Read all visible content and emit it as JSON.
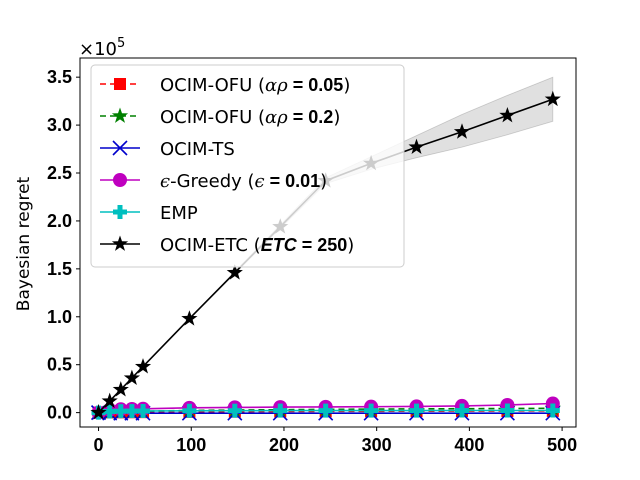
{
  "chart_data": {
    "type": "line",
    "title": "",
    "xlabel": "",
    "ylabel": "Bayesian regret",
    "xlim": [
      -20,
      515
    ],
    "ylim": [
      -0.15,
      3.7
    ],
    "y_scale_label": "×10",
    "y_scale_exponent": "5",
    "xticks": [
      0,
      100,
      200,
      300,
      400,
      500
    ],
    "xtick_labels": [
      "0",
      "100",
      "200",
      "300",
      "400",
      "500"
    ],
    "yticks": [
      0,
      0.5,
      1,
      1.5,
      2,
      2.5,
      3,
      3.5
    ],
    "ytick_labels": [
      "0.0",
      "0.5",
      "1.0",
      "1.5",
      "2.0",
      "2.5",
      "3.0",
      "3.5"
    ],
    "grid": false,
    "legend_position": "top-left",
    "series": [
      {
        "name": "OCIM-OFU (αρ = 0.05)",
        "legend_prefix": "OCIM-OFU (",
        "legend_math": "αρ",
        "legend_bold": " = 0.05",
        "legend_suffix": ")",
        "color": "#ff0000",
        "linestyle": "dashed",
        "marker": "square",
        "x": [
          0,
          12,
          24,
          36,
          48,
          98,
          147,
          196,
          245,
          294,
          343,
          392,
          441,
          490
        ],
        "values": [
          0,
          0.002,
          0.003,
          0.004,
          0.005,
          0.008,
          0.01,
          0.012,
          0.013,
          0.014,
          0.015,
          0.016,
          0.017,
          0.018
        ]
      },
      {
        "name": "OCIM-OFU (αρ = 0.2)",
        "legend_prefix": "OCIM-OFU (",
        "legend_math": "αρ",
        "legend_bold": " = 0.2",
        "legend_suffix": ")",
        "color": "#008000",
        "linestyle": "dashed",
        "marker": "star",
        "x": [
          0,
          12,
          24,
          36,
          48,
          98,
          147,
          196,
          245,
          294,
          343,
          392,
          441,
          490
        ],
        "values": [
          0,
          0.005,
          0.009,
          0.012,
          0.015,
          0.022,
          0.027,
          0.031,
          0.034,
          0.037,
          0.039,
          0.041,
          0.043,
          0.045
        ]
      },
      {
        "name": "OCIM-TS",
        "legend_prefix": "OCIM-TS",
        "legend_math": "",
        "legend_bold": "",
        "legend_suffix": "",
        "color": "#0000cc",
        "linestyle": "solid",
        "marker": "x",
        "x": [
          0,
          12,
          24,
          36,
          48,
          98,
          147,
          196,
          245,
          294,
          343,
          392,
          441,
          490
        ],
        "values": [
          0,
          -0.005,
          -0.006,
          -0.006,
          -0.006,
          -0.006,
          -0.006,
          -0.006,
          -0.006,
          -0.006,
          -0.006,
          -0.006,
          -0.006,
          -0.006
        ]
      },
      {
        "name": "ϵ-Greedy (ϵ = 0.01)",
        "legend_prefix": "",
        "legend_math": "ϵ",
        "legend_mid": "-Greedy (",
        "legend_math2": "ϵ",
        "legend_bold": " = 0.01",
        "legend_suffix": ")",
        "color": "#bf00bf",
        "linestyle": "solid",
        "marker": "circle",
        "x": [
          0,
          12,
          24,
          36,
          48,
          98,
          147,
          196,
          245,
          294,
          343,
          392,
          441,
          490
        ],
        "values": [
          0,
          0.03,
          0.035,
          0.038,
          0.04,
          0.05,
          0.055,
          0.058,
          0.06,
          0.062,
          0.065,
          0.07,
          0.08,
          0.095
        ]
      },
      {
        "name": "EMP",
        "legend_prefix": "EMP",
        "legend_math": "",
        "legend_bold": "",
        "legend_suffix": "",
        "color": "#00bfbf",
        "linestyle": "solid",
        "marker": "plus",
        "x": [
          0,
          12,
          24,
          36,
          48,
          98,
          147,
          196,
          245,
          294,
          343,
          392,
          441,
          490
        ],
        "values": [
          0,
          0.012,
          0.015,
          0.016,
          0.017,
          0.019,
          0.02,
          0.021,
          0.021,
          0.021,
          0.021,
          0.022,
          0.022,
          0.022
        ]
      },
      {
        "name": "OCIM-ETC (ETC = 250)",
        "legend_prefix": "OCIM-ETC (",
        "legend_math": "",
        "legend_bolditalic": "ETC",
        "legend_bold": " = 250",
        "legend_suffix": ")",
        "color": "#000000",
        "linestyle": "solid",
        "marker": "star",
        "x": [
          0,
          12,
          24,
          36,
          48,
          98,
          147,
          196,
          245,
          294,
          343,
          392,
          441,
          490
        ],
        "values": [
          0,
          0.12,
          0.24,
          0.36,
          0.48,
          0.98,
          1.46,
          1.94,
          2.42,
          2.6,
          2.77,
          2.93,
          3.1,
          3.27
        ],
        "band_upper": [
          0,
          0.12,
          0.24,
          0.36,
          0.48,
          0.98,
          1.47,
          1.96,
          2.45,
          2.67,
          2.89,
          3.11,
          3.31,
          3.5
        ],
        "band_lower": [
          0,
          0.12,
          0.24,
          0.36,
          0.48,
          0.98,
          1.45,
          1.92,
          2.39,
          2.54,
          2.66,
          2.77,
          2.9,
          3.04
        ]
      }
    ]
  }
}
